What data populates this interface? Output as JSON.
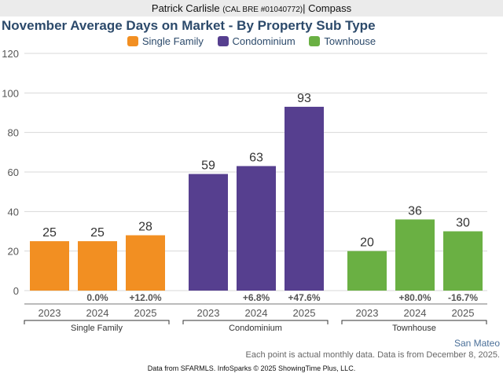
{
  "header": {
    "agent_name": "Patrick Carlisle",
    "license": "(CAL BRE #01040772)",
    "separator": "|",
    "brokerage": "Compass"
  },
  "footer": {
    "region": "San Mateo",
    "note": "Each point is actual monthly data. Data is from December 8, 2025.",
    "source": "Data from SFARMLS. InfoSparks © 2025 ShowingTime Plus, LLC."
  },
  "chart_data": {
    "type": "bar",
    "title": "November Average Days on Market - By Property Sub Type",
    "xlabel": "",
    "ylabel": "",
    "ylim": [
      0,
      120
    ],
    "yticks": [
      0,
      20,
      40,
      60,
      80,
      100,
      120
    ],
    "grid": true,
    "legend_position": "top-center",
    "categories": [
      "2023",
      "2024",
      "2025"
    ],
    "series": [
      {
        "name": "Single Family",
        "color": "#f28f22",
        "values": [
          25,
          25,
          28
        ],
        "changes": [
          "",
          "0.0%",
          "+12.0%"
        ]
      },
      {
        "name": "Condominium",
        "color": "#563f8f",
        "values": [
          59,
          63,
          93
        ],
        "changes": [
          "",
          "+6.8%",
          "+47.6%"
        ]
      },
      {
        "name": "Townhouse",
        "color": "#6ab043",
        "values": [
          20,
          36,
          30
        ],
        "changes": [
          "",
          "+80.0%",
          "-16.7%"
        ]
      }
    ]
  }
}
